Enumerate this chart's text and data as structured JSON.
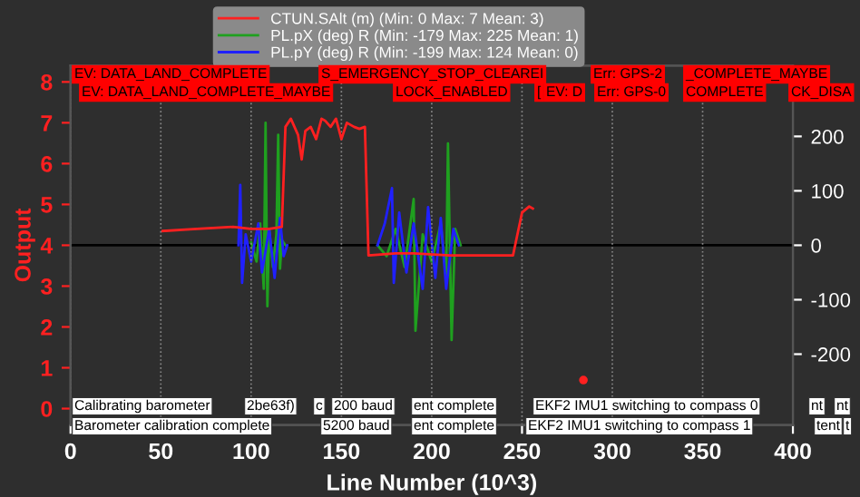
{
  "chart_data": {
    "type": "line",
    "xlabel": "Line Number (10^3)",
    "ylabel": "Output",
    "xlim": [
      0,
      400
    ],
    "xticks": [
      0,
      50,
      100,
      150,
      200,
      250,
      300,
      350,
      400
    ],
    "ylim": [
      -0.4,
      8.4
    ],
    "yticks": [
      0,
      1,
      2,
      3,
      4,
      5,
      6,
      7,
      8
    ],
    "y2lim": [
      -330,
      330
    ],
    "y2ticks": [
      -200,
      -100,
      0,
      100,
      200
    ],
    "grid": "x",
    "legend": "top left",
    "line_style": "solid",
    "marker": "none",
    "ref_lines": [
      {
        "axis": "y2",
        "value": 0,
        "color": "#000000"
      }
    ],
    "series": [
      {
        "name": "CTUN.SAlt (m) (Min: 0 Max: 7 Mean: 3)",
        "color": "#ff2020",
        "x": [
          51,
          70,
          90,
          100,
          110,
          117,
          119,
          122,
          126,
          128,
          130,
          133,
          136,
          139,
          141,
          144,
          147,
          150,
          153,
          157,
          160,
          163,
          165,
          180,
          190,
          210,
          230,
          245,
          250,
          254,
          256
        ],
        "values": [
          4.35,
          4.4,
          4.45,
          4.4,
          4.4,
          4.45,
          6.9,
          7.1,
          6.7,
          6.1,
          6.8,
          6.9,
          6.6,
          7.1,
          7.05,
          6.9,
          7.1,
          6.6,
          7.0,
          6.9,
          6.85,
          6.9,
          3.75,
          3.8,
          3.8,
          3.75,
          3.75,
          3.75,
          4.8,
          4.95,
          4.9
        ]
      },
      {
        "type": "scatter",
        "color": "#ff2020",
        "x": [
          284
        ],
        "values": [
          0.7
        ]
      },
      {
        "name": "PL.pX (deg) R (Min: -179 Max: 225 Mean: 1)",
        "color": "#1fa01f",
        "axis": "y2",
        "x": [
          100,
          103,
          105,
          107,
          108,
          109,
          110,
          112,
          114,
          115,
          116,
          117,
          119,
          140,
          170,
          175,
          180,
          185,
          190,
          191,
          195,
          200,
          205,
          208,
          209,
          211,
          213,
          216
        ],
        "values": [
          5,
          -30,
          40,
          -80,
          225,
          -112,
          30,
          -40,
          20,
          203,
          -43,
          10,
          0,
          null,
          0,
          -20,
          30,
          -40,
          85,
          -157,
          20,
          -30,
          40,
          -60,
          187,
          -174,
          30,
          0
        ]
      },
      {
        "name": "PL.pY (deg) R (Min: -199 Max: 124 Mean: 0)",
        "color": "#2020ff",
        "axis": "y2",
        "x": [
          93,
          94,
          95,
          97,
          100,
          104,
          106,
          110,
          113,
          116,
          118,
          120,
          140,
          170,
          174,
          178,
          179,
          182,
          186,
          190,
          195,
          198,
          202,
          205,
          208,
          212,
          215
        ],
        "values": [
          0,
          111,
          -69,
          20,
          -30,
          40,
          -50,
          30,
          -60,
          50,
          -20,
          0,
          null,
          0,
          40,
          105,
          -69,
          60,
          -50,
          40,
          -80,
          70,
          -60,
          50,
          -80,
          30,
          0
        ]
      }
    ],
    "annotations": [
      "EV: DATA_LAND_COMPLETE",
      "S_EMERGENCY_STOP_CLEAREI",
      "Err: GPS-2",
      "_COMPLETE_MAYBE",
      "EV: DATA_LAND_COMPLETE_MAYBE",
      "LOCK_ENABLED",
      "[",
      "EV: D",
      "Err: GPS-0",
      "COMPLETE",
      "CK_DISA",
      "Calibrating barometer",
      "2be63f)",
      "c",
      "200 baud",
      "ent complete",
      "EKF2 IMU1 switching to compass 0",
      "nt",
      "nt",
      "Barometer calibration complete",
      "5200 baud",
      "ent complete",
      "EKF2 IMU1 switching to compass 1",
      "tent",
      "t"
    ]
  }
}
